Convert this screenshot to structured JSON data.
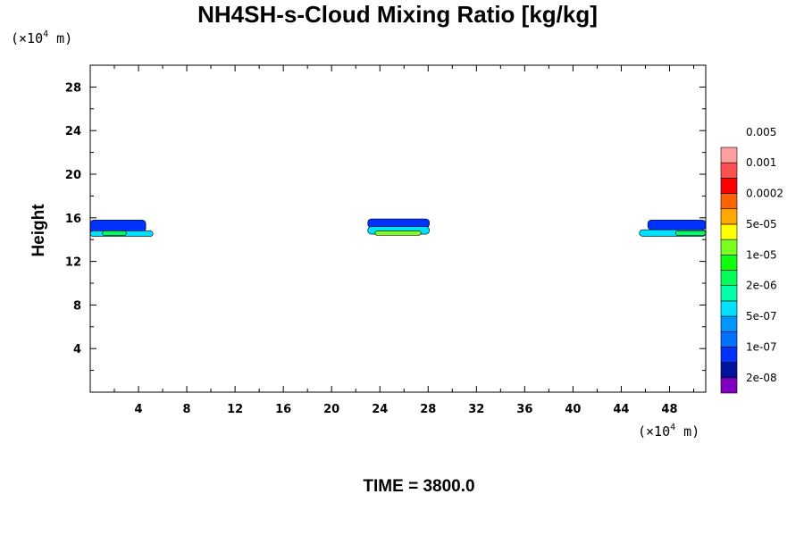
{
  "chart_data": {
    "type": "heatmap",
    "title": "NH4SH-s-Cloud Mixing Ratio [kg/kg]",
    "ylabel": "Height",
    "x_unit": {
      "prefix": "(×10",
      "exp": "4",
      "suffix": " m)"
    },
    "y_unit": {
      "prefix": "(×10",
      "exp": "4",
      "suffix": " m)"
    },
    "time_label": "TIME = 3800.0",
    "xlim": [
      0,
      51
    ],
    "ylim": [
      0,
      30
    ],
    "x_ticks": [
      4,
      8,
      12,
      16,
      20,
      24,
      28,
      32,
      36,
      40,
      44,
      48
    ],
    "y_ticks": [
      4,
      8,
      12,
      16,
      20,
      24,
      28
    ],
    "colorbar": {
      "colors": [
        "#7f00bf",
        "#00149a",
        "#0032ff",
        "#0070ff",
        "#0096ff",
        "#00e0ff",
        "#00ffa8",
        "#00fe5a",
        "#10ff10",
        "#7dff1e",
        "#ffff00",
        "#ffa800",
        "#ff6400",
        "#ff0000",
        "#ff5050",
        "#ffa0a0"
      ],
      "labels": [
        "2e-08",
        "1e-07",
        "5e-07",
        "2e-06",
        "1e-05",
        "5e-05",
        "0.0002",
        "0.001",
        "0.005"
      ]
    },
    "clouds": [
      {
        "x": [
          0.0,
          4.5
        ],
        "y": [
          14.4,
          15.8
        ],
        "bands": [
          {
            "color": "#0032ff",
            "x": [
              0.0,
              4.6
            ],
            "y": [
              14.7,
              15.8
            ]
          },
          {
            "color": "#00e0ff",
            "x": [
              0.0,
              5.2
            ],
            "y": [
              14.3,
              14.8
            ]
          },
          {
            "color": "#00fe5a",
            "x": [
              1.0,
              3.0
            ],
            "y": [
              14.4,
              14.8
            ]
          }
        ]
      },
      {
        "x": [
          23.0,
          28.0
        ],
        "y": [
          14.4,
          15.9
        ],
        "bands": [
          {
            "color": "#0032ff",
            "x": [
              23.0,
              28.1
            ],
            "y": [
              15.1,
              15.9
            ]
          },
          {
            "color": "#00e0ff",
            "x": [
              23.0,
              28.1
            ],
            "y": [
              14.5,
              15.2
            ]
          },
          {
            "color": "#7dff1e",
            "x": [
              23.6,
              27.4
            ],
            "y": [
              14.4,
              14.8
            ]
          }
        ]
      },
      {
        "x": [
          45.5,
          51.0
        ],
        "y": [
          14.4,
          15.8
        ],
        "bands": [
          {
            "color": "#0032ff",
            "x": [
              46.2,
              51.0
            ],
            "y": [
              14.9,
              15.8
            ]
          },
          {
            "color": "#00e0ff",
            "x": [
              45.5,
              51.0
            ],
            "y": [
              14.3,
              14.9
            ]
          },
          {
            "color": "#00fe5a",
            "x": [
              48.5,
              51.0
            ],
            "y": [
              14.4,
              14.8
            ]
          }
        ]
      }
    ]
  }
}
